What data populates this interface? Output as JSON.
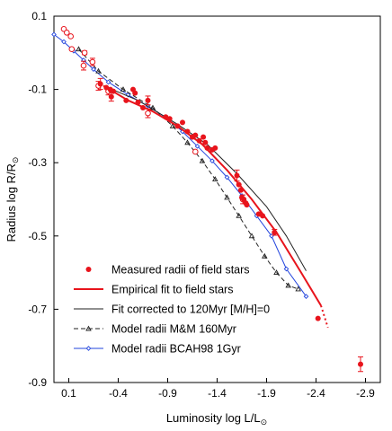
{
  "chart_data": {
    "type": "scatter",
    "xlabel": "Luminosity log L/L",
    "xlabel_sub": "⊙",
    "ylabel": "Radius log R/R",
    "ylabel_sub": "⊙",
    "x_reversed": true,
    "xlim": [
      0.25,
      -3.05
    ],
    "ylim": [
      -0.9,
      0.1
    ],
    "x_ticks": [
      0.1,
      -0.4,
      -0.9,
      -1.4,
      -1.9,
      -2.4,
      -2.9
    ],
    "x_tick_labels": [
      "0.1",
      "-0.4",
      "-0.9",
      "-1.4",
      "-1.9",
      "-2.4",
      "-2.9"
    ],
    "y_ticks": [
      0.1,
      -0.1,
      -0.3,
      -0.5,
      -0.7,
      -0.9
    ],
    "y_tick_labels": [
      "0.1",
      "-0.1",
      "-0.3",
      "-0.5",
      "-0.7",
      "-0.9"
    ],
    "legend_position": "bottom-left",
    "series": [
      {
        "name": "Measured radii of field stars",
        "style": "filled-circle",
        "color": "#e8141c",
        "points": [
          {
            "x": -0.22,
            "y": -0.085,
            "err": 0.015
          },
          {
            "x": -0.28,
            "y": -0.095
          },
          {
            "x": -0.32,
            "y": -0.1
          },
          {
            "x": -0.35,
            "y": -0.105
          },
          {
            "x": -0.33,
            "y": -0.12,
            "err": 0.012
          },
          {
            "x": -0.48,
            "y": -0.13
          },
          {
            "x": -0.55,
            "y": -0.1
          },
          {
            "x": -0.57,
            "y": -0.11
          },
          {
            "x": -0.6,
            "y": -0.135
          },
          {
            "x": -0.65,
            "y": -0.15
          },
          {
            "x": -0.7,
            "y": -0.13,
            "err": 0.012
          },
          {
            "x": -0.88,
            "y": -0.175
          },
          {
            "x": -0.92,
            "y": -0.18
          },
          {
            "x": -1.0,
            "y": -0.2
          },
          {
            "x": -1.05,
            "y": -0.19
          },
          {
            "x": -1.1,
            "y": -0.215
          },
          {
            "x": -1.15,
            "y": -0.23
          },
          {
            "x": -1.18,
            "y": -0.225
          },
          {
            "x": -1.22,
            "y": -0.24
          },
          {
            "x": -1.26,
            "y": -0.23
          },
          {
            "x": -1.28,
            "y": -0.245
          },
          {
            "x": -1.3,
            "y": -0.26
          },
          {
            "x": -1.35,
            "y": -0.265
          },
          {
            "x": -1.38,
            "y": -0.26
          },
          {
            "x": -1.6,
            "y": -0.335,
            "err": 0.015
          },
          {
            "x": -1.62,
            "y": -0.36
          },
          {
            "x": -1.64,
            "y": -0.375
          },
          {
            "x": -1.65,
            "y": -0.395
          },
          {
            "x": -1.67,
            "y": -0.4
          },
          {
            "x": -1.69,
            "y": -0.41
          },
          {
            "x": -1.7,
            "y": -0.415
          },
          {
            "x": -1.82,
            "y": -0.44
          },
          {
            "x": -1.86,
            "y": -0.445
          },
          {
            "x": -1.98,
            "y": -0.49,
            "err": 0.008
          },
          {
            "x": -2.42,
            "y": -0.725
          },
          {
            "x": -2.85,
            "y": -0.85,
            "err": 0.02
          }
        ]
      },
      {
        "name": "",
        "style": "open-circle",
        "color": "#e8141c",
        "points": [
          {
            "x": 0.15,
            "y": 0.065
          },
          {
            "x": 0.12,
            "y": 0.055
          },
          {
            "x": 0.08,
            "y": 0.045
          },
          {
            "x": 0.07,
            "y": 0.01
          },
          {
            "x": -0.05,
            "y": -0.035,
            "err": 0.012
          },
          {
            "x": -0.06,
            "y": 0.0,
            "err": 0.005
          },
          {
            "x": -0.14,
            "y": -0.025,
            "err": 0.01
          },
          {
            "x": -0.2,
            "y": -0.09,
            "err": 0.012
          },
          {
            "x": -0.3,
            "y": -0.105,
            "err": 0.01
          },
          {
            "x": -0.7,
            "y": -0.165,
            "err": 0.012
          },
          {
            "x": -1.18,
            "y": -0.27
          },
          {
            "x": -1.66,
            "y": -0.4,
            "err": 0.012
          }
        ]
      },
      {
        "name": "Empirical fit  to field stars",
        "style": "line",
        "color": "#e8141c",
        "points": [
          {
            "x": -0.25,
            "y": -0.09
          },
          {
            "x": -0.5,
            "y": -0.13
          },
          {
            "x": -0.75,
            "y": -0.16
          },
          {
            "x": -1.0,
            "y": -0.2
          },
          {
            "x": -1.25,
            "y": -0.25
          },
          {
            "x": -1.5,
            "y": -0.32
          },
          {
            "x": -1.75,
            "y": -0.4
          },
          {
            "x": -2.0,
            "y": -0.49
          },
          {
            "x": -2.25,
            "y": -0.6
          },
          {
            "x": -2.45,
            "y": -0.69
          }
        ],
        "extension": [
          {
            "x": -2.45,
            "y": -0.69
          },
          {
            "x": -2.52,
            "y": -0.75
          }
        ]
      },
      {
        "name": "Fit corrected to 120Myr [M/H]=0",
        "style": "line",
        "color": "#222222",
        "points": [
          {
            "x": -0.25,
            "y": -0.09
          },
          {
            "x": -0.6,
            "y": -0.13
          },
          {
            "x": -1.0,
            "y": -0.195
          },
          {
            "x": -1.3,
            "y": -0.25
          },
          {
            "x": -1.6,
            "y": -0.33
          },
          {
            "x": -1.9,
            "y": -0.42
          },
          {
            "x": -2.1,
            "y": -0.5
          },
          {
            "x": -2.3,
            "y": -0.595
          }
        ]
      },
      {
        "name": "Model radii M&M 160Myr",
        "style": "dashed-triangle",
        "color": "#222222",
        "points": [
          {
            "x": 0.0,
            "y": 0.01
          },
          {
            "x": -0.2,
            "y": -0.05
          },
          {
            "x": -0.45,
            "y": -0.1
          },
          {
            "x": -0.75,
            "y": -0.15
          },
          {
            "x": -0.95,
            "y": -0.2
          },
          {
            "x": -1.1,
            "y": -0.245
          },
          {
            "x": -1.25,
            "y": -0.295
          },
          {
            "x": -1.38,
            "y": -0.345
          },
          {
            "x": -1.5,
            "y": -0.395
          },
          {
            "x": -1.62,
            "y": -0.445
          },
          {
            "x": -1.75,
            "y": -0.5
          },
          {
            "x": -1.88,
            "y": -0.555
          },
          {
            "x": -2.0,
            "y": -0.6
          },
          {
            "x": -2.12,
            "y": -0.635
          },
          {
            "x": -2.22,
            "y": -0.645
          }
        ]
      },
      {
        "name": "Model radii BCAH98 1Gyr",
        "style": "line-diamond",
        "color": "#2244dd",
        "points": [
          {
            "x": 0.25,
            "y": 0.05
          },
          {
            "x": 0.15,
            "y": 0.03
          },
          {
            "x": 0.05,
            "y": 0.005
          },
          {
            "x": -0.05,
            "y": -0.02
          },
          {
            "x": -0.15,
            "y": -0.045
          },
          {
            "x": -0.3,
            "y": -0.08
          },
          {
            "x": -0.5,
            "y": -0.115
          },
          {
            "x": -0.7,
            "y": -0.145
          },
          {
            "x": -0.9,
            "y": -0.18
          },
          {
            "x": -1.05,
            "y": -0.215
          },
          {
            "x": -1.2,
            "y": -0.255
          },
          {
            "x": -1.35,
            "y": -0.295
          },
          {
            "x": -1.5,
            "y": -0.34
          },
          {
            "x": -1.65,
            "y": -0.39
          },
          {
            "x": -1.8,
            "y": -0.445
          },
          {
            "x": -1.95,
            "y": -0.5
          },
          {
            "x": -2.1,
            "y": -0.59
          },
          {
            "x": -2.3,
            "y": -0.665
          }
        ]
      }
    ]
  }
}
